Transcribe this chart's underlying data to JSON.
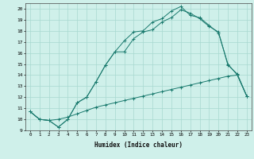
{
  "title": "",
  "xlabel": "Humidex (Indice chaleur)",
  "bg_color": "#cff0ea",
  "grid_color": "#a8d8d0",
  "line_color": "#1a7a6e",
  "xlim": [
    -0.5,
    23.5
  ],
  "ylim": [
    9,
    20.5
  ],
  "xtick_labels": [
    "0",
    "1",
    "2",
    "3",
    "4",
    "5",
    "6",
    "7",
    "8",
    "9",
    "10",
    "11",
    "12",
    "13",
    "14",
    "15",
    "16",
    "17",
    "18",
    "19",
    "20",
    "21",
    "22",
    "23"
  ],
  "ytick_labels": [
    "9",
    "10",
    "11",
    "12",
    "13",
    "14",
    "15",
    "16",
    "17",
    "18",
    "19",
    "20"
  ],
  "line_top_x": [
    0,
    1,
    2,
    3,
    4,
    5,
    6,
    7,
    8,
    9,
    10,
    11,
    12,
    13,
    14,
    15,
    16,
    17,
    18,
    19,
    20,
    21,
    22,
    23
  ],
  "line_top_y": [
    10.7,
    10.0,
    9.9,
    9.3,
    10.0,
    11.5,
    12.0,
    13.4,
    14.9,
    16.1,
    17.1,
    17.9,
    18.0,
    18.8,
    19.1,
    19.8,
    20.2,
    19.4,
    19.2,
    18.5,
    17.8,
    15.0,
    14.0,
    12.1
  ],
  "line_mid_x": [
    0,
    1,
    2,
    3,
    4,
    5,
    6,
    7,
    8,
    9,
    10,
    11,
    12,
    13,
    14,
    15,
    16,
    17,
    18,
    19,
    20,
    21,
    22,
    23
  ],
  "line_mid_y": [
    10.7,
    10.0,
    9.9,
    9.3,
    10.0,
    11.5,
    12.0,
    13.4,
    14.9,
    16.1,
    16.1,
    17.3,
    17.9,
    18.1,
    18.8,
    19.2,
    19.9,
    19.6,
    19.1,
    18.4,
    17.9,
    14.9,
    14.1,
    12.1
  ],
  "line_bot_x": [
    0,
    1,
    2,
    3,
    4,
    5,
    6,
    7,
    8,
    9,
    10,
    11,
    12,
    13,
    14,
    15,
    16,
    17,
    18,
    19,
    20,
    21,
    22,
    23
  ],
  "line_bot_y": [
    10.7,
    10.0,
    9.9,
    10.0,
    10.2,
    10.5,
    10.8,
    11.1,
    11.3,
    11.5,
    11.7,
    11.9,
    12.1,
    12.3,
    12.5,
    12.7,
    12.9,
    13.1,
    13.3,
    13.5,
    13.7,
    13.9,
    14.0,
    12.1
  ]
}
